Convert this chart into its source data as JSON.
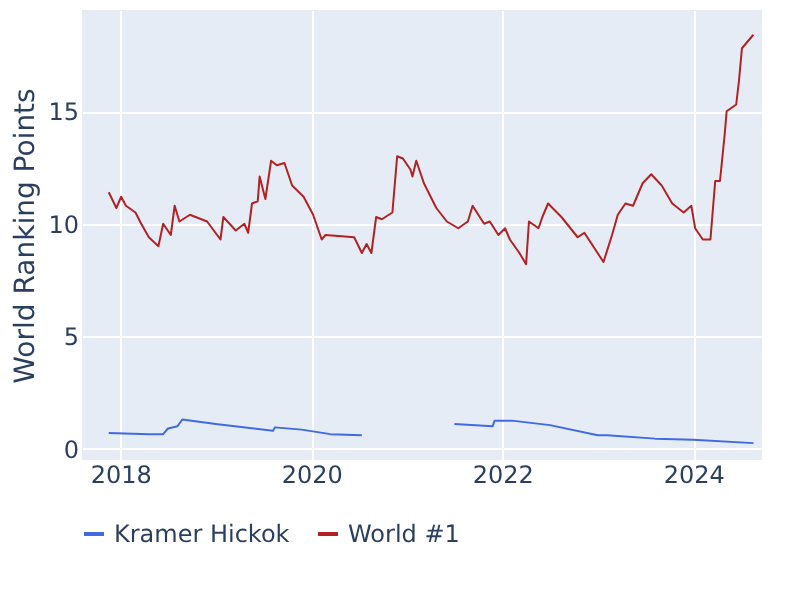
{
  "chart_data": {
    "type": "line",
    "ylabel": "World Ranking Points",
    "xlim": [
      2017.6,
      2024.72
    ],
    "xticks": [
      2018,
      2020,
      2022,
      2024
    ],
    "ylim": [
      -0.5,
      19.5
    ],
    "yticks": [
      0,
      5,
      10,
      15
    ],
    "grid": true,
    "legend": "bottom",
    "series": [
      {
        "name": "Kramer Hickok",
        "color": "#4169e1",
        "x": [
          2017.88,
          2018.3,
          2018.45,
          2018.5,
          2018.6,
          2018.65,
          2019.0,
          2019.6,
          2019.62,
          2019.9,
          2020.2,
          2020.53,
          2020.54,
          2021.5,
          2021.9,
          2021.92,
          2022.1,
          2022.5,
          2023.0,
          2023.1,
          2023.6,
          2024.0,
          2024.63
        ],
        "values": [
          0.7,
          0.65,
          0.65,
          0.9,
          1.0,
          1.3,
          1.1,
          0.8,
          0.95,
          0.85,
          0.65,
          0.6,
          null,
          1.1,
          1.0,
          1.25,
          1.25,
          1.05,
          0.6,
          0.6,
          0.45,
          0.4,
          0.25
        ]
      },
      {
        "name": "World #1",
        "color": "#b22222",
        "x": [
          2017.88,
          2017.96,
          2018.01,
          2018.06,
          2018.16,
          2018.22,
          2018.3,
          2018.4,
          2018.45,
          2018.53,
          2018.57,
          2018.62,
          2018.73,
          2018.91,
          2019.05,
          2019.08,
          2019.21,
          2019.3,
          2019.34,
          2019.38,
          2019.44,
          2019.46,
          2019.52,
          2019.58,
          2019.64,
          2019.72,
          2019.8,
          2019.92,
          2020.02,
          2020.11,
          2020.15,
          2020.45,
          2020.53,
          2020.58,
          2020.63,
          2020.68,
          2020.74,
          2020.85,
          2020.9,
          2020.96,
          2021.04,
          2021.06,
          2021.1,
          2021.18,
          2021.31,
          2021.42,
          2021.54,
          2021.64,
          2021.69,
          2021.81,
          2021.87,
          2021.96,
          2022.03,
          2022.08,
          2022.18,
          2022.25,
          2022.28,
          2022.38,
          2022.42,
          2022.48,
          2022.62,
          2022.79,
          2022.86,
          2023.06,
          2023.15,
          2023.21,
          2023.29,
          2023.37,
          2023.47,
          2023.56,
          2023.67,
          2023.78,
          2023.9,
          2023.98,
          2024.02,
          2024.1,
          2024.18,
          2024.23,
          2024.28,
          2024.33,
          2024.35,
          2024.45,
          2024.48,
          2024.51,
          2024.59,
          2024.63
        ],
        "values": [
          11.4,
          10.7,
          11.2,
          10.8,
          10.5,
          10.0,
          9.4,
          9.0,
          10.0,
          9.5,
          10.8,
          10.1,
          10.4,
          10.1,
          9.3,
          10.3,
          9.7,
          10.0,
          9.6,
          10.9,
          11.0,
          12.1,
          11.1,
          12.8,
          12.6,
          12.7,
          11.7,
          11.2,
          10.4,
          9.3,
          9.5,
          9.4,
          8.7,
          9.1,
          8.7,
          10.3,
          10.2,
          10.5,
          13.0,
          12.9,
          12.4,
          12.1,
          12.8,
          11.8,
          10.7,
          10.1,
          9.8,
          10.1,
          10.8,
          10.0,
          10.1,
          9.5,
          9.8,
          9.3,
          8.7,
          8.2,
          10.1,
          9.8,
          10.3,
          10.9,
          10.3,
          9.4,
          9.6,
          8.3,
          9.5,
          10.4,
          10.9,
          10.8,
          11.8,
          12.2,
          11.7,
          10.9,
          10.5,
          10.8,
          9.8,
          9.3,
          9.3,
          11.9,
          11.9,
          14.0,
          15.0,
          15.3,
          16.4,
          17.8,
          18.2,
          18.4
        ]
      }
    ]
  }
}
